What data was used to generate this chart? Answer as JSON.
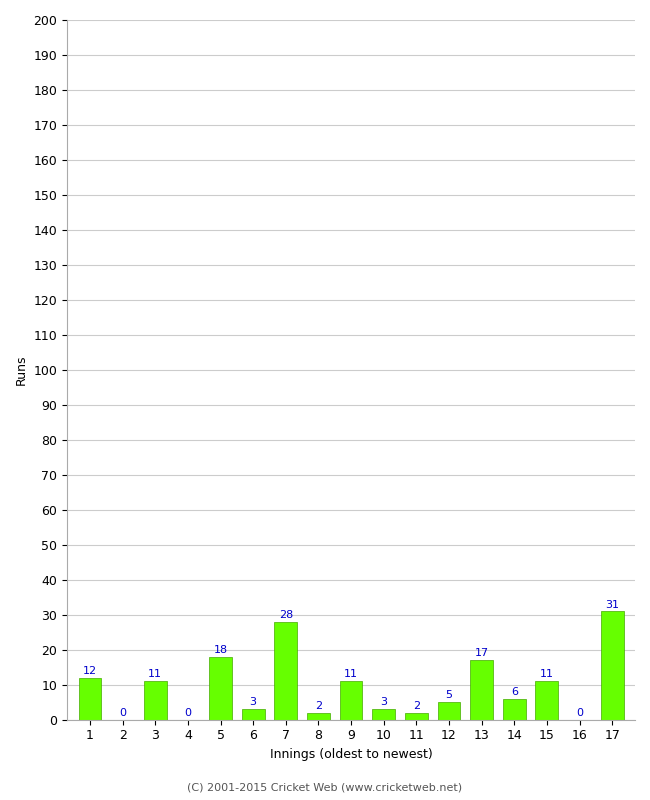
{
  "innings": [
    1,
    2,
    3,
    4,
    5,
    6,
    7,
    8,
    9,
    10,
    11,
    12,
    13,
    14,
    15,
    16,
    17
  ],
  "runs": [
    12,
    0,
    11,
    0,
    18,
    3,
    28,
    2,
    11,
    3,
    2,
    5,
    17,
    6,
    11,
    0,
    31
  ],
  "bar_color": "#66ff00",
  "bar_edge_color": "#44aa00",
  "label_color": "#0000cc",
  "title": "",
  "ylabel": "Runs",
  "xlabel": "Innings (oldest to newest)",
  "ylim": [
    0,
    200
  ],
  "yticks": [
    0,
    10,
    20,
    30,
    40,
    50,
    60,
    70,
    80,
    90,
    100,
    110,
    120,
    130,
    140,
    150,
    160,
    170,
    180,
    190,
    200
  ],
  "footer": "(C) 2001-2015 Cricket Web (www.cricketweb.net)",
  "background_color": "#ffffff",
  "grid_color": "#cccccc"
}
